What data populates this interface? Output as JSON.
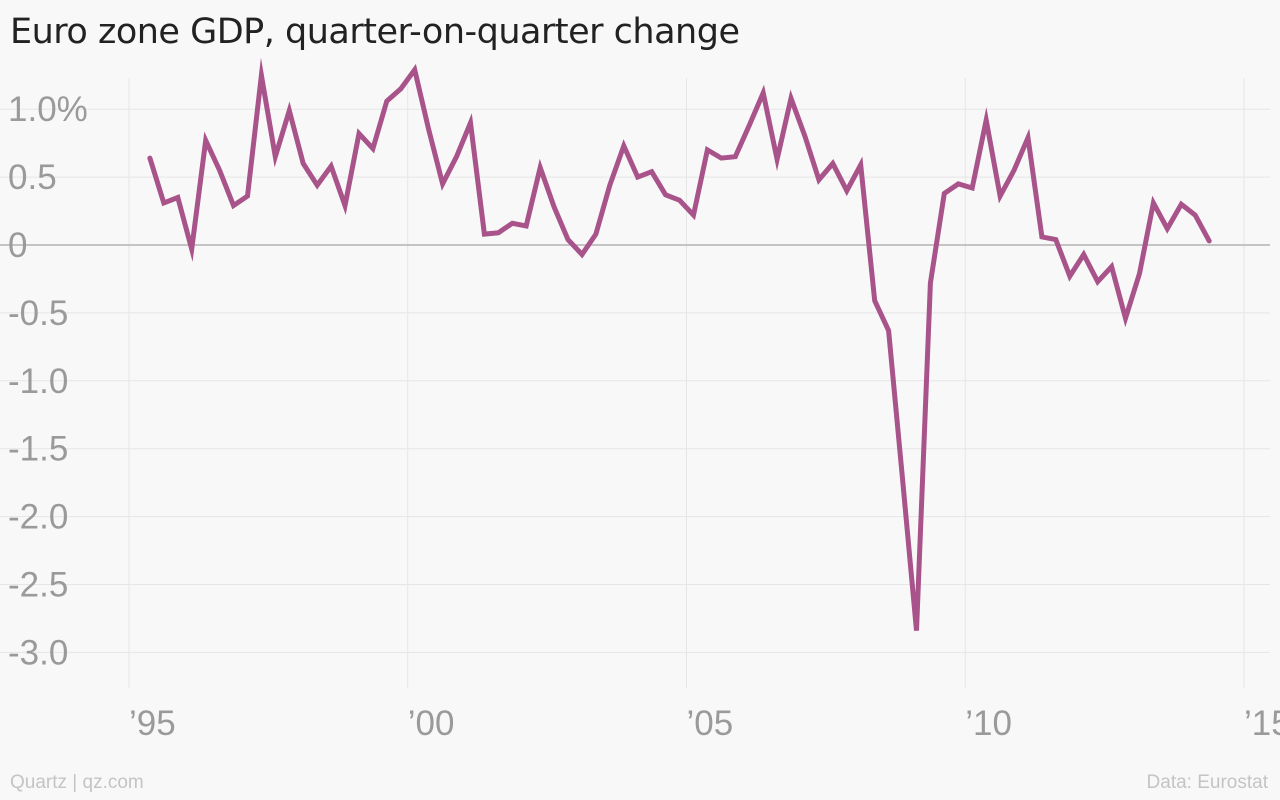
{
  "header": {
    "title": "Euro zone GDP, quarter-on-quarter change"
  },
  "footer": {
    "credit": "Quartz | qz.com",
    "source": "Data: Eurostat"
  },
  "colors": {
    "line": "#a8538a",
    "grid": "#e6e6e6",
    "zero_line": "#b3b3b3",
    "tick_text": "#9a9a9a",
    "title_text": "#222222",
    "footer_text": "#c4c4c4",
    "background": "#f8f8f8"
  },
  "chart_data": {
    "type": "line",
    "title": "Euro zone GDP, quarter-on-quarter change",
    "xlabel": "",
    "ylabel": "",
    "xlim": [
      1994.8,
      2015.5
    ],
    "ylim": [
      -3.3,
      1.3
    ],
    "grid": true,
    "legend": "none",
    "y_ticks": [
      {
        "value": 1.0,
        "label": "1.0%"
      },
      {
        "value": 0.5,
        "label": "0.5"
      },
      {
        "value": 0,
        "label": "0"
      },
      {
        "value": -0.5,
        "label": "-0.5"
      },
      {
        "value": -1.0,
        "label": "-1.0"
      },
      {
        "value": -1.5,
        "label": "-1.5"
      },
      {
        "value": -2.0,
        "label": "-2.0"
      },
      {
        "value": -2.5,
        "label": "-2.5"
      },
      {
        "value": -3.0,
        "label": "-3.0"
      }
    ],
    "x_ticks": [
      {
        "value": 1995,
        "label": "’95"
      },
      {
        "value": 2000,
        "label": "’00"
      },
      {
        "value": 2005,
        "label": "’05"
      },
      {
        "value": 2010,
        "label": "’10"
      },
      {
        "value": 2015,
        "label": "’15"
      }
    ],
    "series": [
      {
        "x": [
          1995.375,
          1995.625,
          1995.875,
          1996.125,
          1996.375,
          1996.625,
          1996.875,
          1997.125,
          1997.375,
          1997.625,
          1997.875,
          1998.125,
          1998.375,
          1998.625,
          1998.875,
          1999.125,
          1999.375,
          1999.625,
          1999.875,
          2000.125,
          2000.375,
          2000.625,
          2000.875,
          2001.125,
          2001.375,
          2001.625,
          2001.875,
          2002.125,
          2002.375,
          2002.625,
          2002.875,
          2003.125,
          2003.375,
          2003.625,
          2003.875,
          2004.125,
          2004.375,
          2004.625,
          2004.875,
          2005.125,
          2005.375,
          2005.625,
          2005.875,
          2006.125,
          2006.375,
          2006.625,
          2006.875,
          2007.125,
          2007.375,
          2007.625,
          2007.875,
          2008.125,
          2008.375,
          2008.625,
          2008.875,
          2009.125,
          2009.375,
          2009.625,
          2009.875,
          2010.125,
          2010.375,
          2010.625,
          2010.875,
          2011.125,
          2011.375,
          2011.625,
          2011.875,
          2012.125,
          2012.375,
          2012.625,
          2012.875,
          2013.125,
          2013.375,
          2013.625,
          2013.875,
          2014.125,
          2014.375
        ],
        "values": [
          0.64,
          0.31,
          0.35,
          -0.03,
          0.77,
          0.55,
          0.29,
          0.36,
          1.25,
          0.65,
          0.99,
          0.6,
          0.44,
          0.58,
          0.29,
          0.82,
          0.71,
          1.06,
          1.15,
          1.29,
          0.85,
          0.45,
          0.65,
          0.9,
          0.08,
          0.09,
          0.16,
          0.14,
          0.57,
          0.28,
          0.04,
          -0.07,
          0.08,
          0.44,
          0.73,
          0.5,
          0.54,
          0.37,
          0.33,
          0.22,
          0.7,
          0.64,
          0.65,
          0.88,
          1.12,
          0.63,
          1.08,
          0.8,
          0.48,
          0.6,
          0.4,
          0.59,
          -0.41,
          -0.63,
          -1.72,
          -2.84,
          -0.28,
          0.38,
          0.45,
          0.42,
          0.92,
          0.36,
          0.55,
          0.79,
          0.06,
          0.04,
          -0.23,
          -0.07,
          -0.27,
          -0.16,
          -0.54,
          -0.21,
          0.31,
          0.12,
          0.3,
          0.22,
          0.03
        ]
      }
    ]
  }
}
